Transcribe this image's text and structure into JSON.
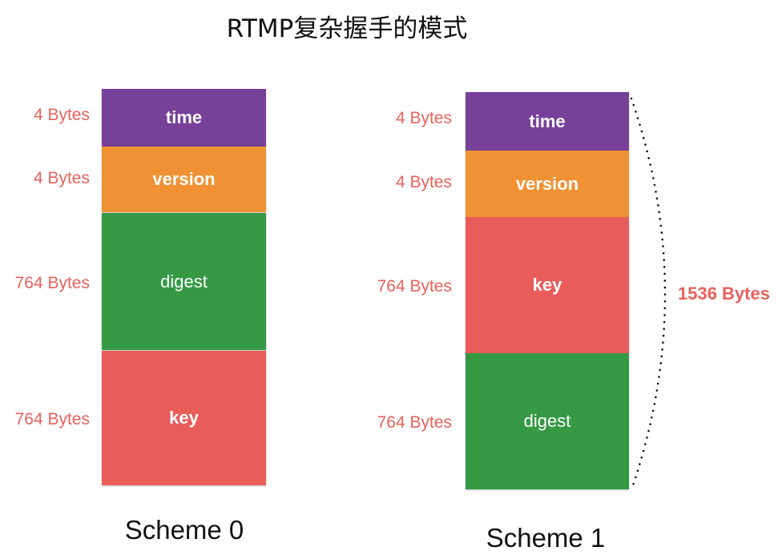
{
  "title": "RTMP复杂握手的模式",
  "colors": {
    "time": "#774099",
    "version": "#f09233",
    "digest": "#359944",
    "key": "#e85d5a",
    "label": "#e8615c"
  },
  "schemes": [
    {
      "name": "Scheme 0",
      "blocks": [
        {
          "label": "time",
          "size": "4 Bytes"
        },
        {
          "label": "version",
          "size": "4 Bytes"
        },
        {
          "label": "digest",
          "size": "764 Bytes"
        },
        {
          "label": "key",
          "size": "764 Bytes"
        }
      ]
    },
    {
      "name": "Scheme 1",
      "blocks": [
        {
          "label": "time",
          "size": "4 Bytes"
        },
        {
          "label": "version",
          "size": "4 Bytes"
        },
        {
          "label": "key",
          "size": "764 Bytes"
        },
        {
          "label": "digest",
          "size": "764 Bytes"
        }
      ]
    }
  ],
  "total": "1536 Bytes"
}
